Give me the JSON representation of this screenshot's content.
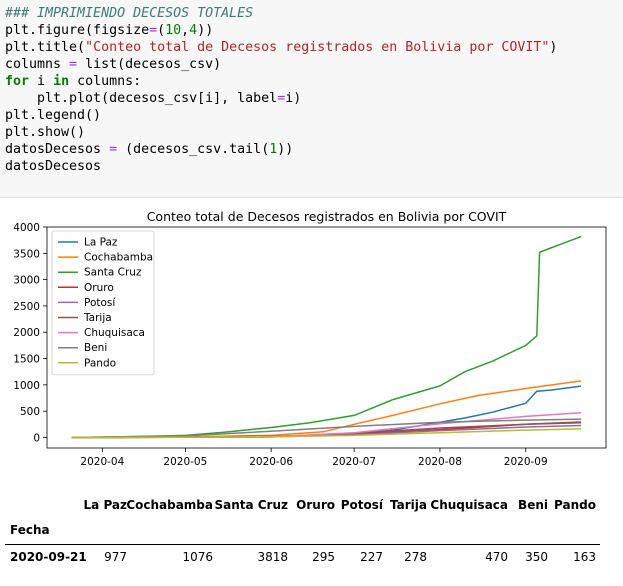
{
  "code_cell": {
    "lines": [
      {
        "parts": [
          {
            "t": "### IMPRIMIENDO DECESOS TOTALES",
            "c": "cm"
          }
        ]
      },
      {
        "parts": [
          {
            "t": "plt.figure(figsize",
            "c": ""
          },
          {
            "t": "=",
            "c": "op"
          },
          {
            "t": "(",
            "c": ""
          },
          {
            "t": "10",
            "c": "nu"
          },
          {
            "t": ",",
            "c": ""
          },
          {
            "t": "4",
            "c": "nu"
          },
          {
            "t": "))",
            "c": ""
          }
        ]
      },
      {
        "parts": [
          {
            "t": "plt.title(",
            "c": ""
          },
          {
            "t": "\"Conteo total de Decesos registrados en Bolivia por COVIT\"",
            "c": "st"
          },
          {
            "t": ")",
            "c": ""
          }
        ]
      },
      {
        "parts": [
          {
            "t": "columns ",
            "c": ""
          },
          {
            "t": "=",
            "c": "op"
          },
          {
            "t": " list(decesos_csv)",
            "c": ""
          }
        ]
      },
      {
        "parts": [
          {
            "t": "for",
            "c": "kw"
          },
          {
            "t": " i ",
            "c": ""
          },
          {
            "t": "in",
            "c": "kw"
          },
          {
            "t": " columns:",
            "c": ""
          }
        ]
      },
      {
        "parts": [
          {
            "t": "    plt.plot(decesos_csv[i], label",
            "c": ""
          },
          {
            "t": "=",
            "c": "op"
          },
          {
            "t": "i)",
            "c": ""
          }
        ]
      },
      {
        "parts": [
          {
            "t": "plt.legend()",
            "c": ""
          }
        ]
      },
      {
        "parts": [
          {
            "t": "plt.show()",
            "c": ""
          }
        ]
      },
      {
        "parts": [
          {
            "t": "datosDecesos ",
            "c": ""
          },
          {
            "t": "=",
            "c": "op"
          },
          {
            "t": " (decesos_csv.tail(",
            "c": ""
          },
          {
            "t": "1",
            "c": "nu"
          },
          {
            "t": "))",
            "c": ""
          }
        ]
      },
      {
        "parts": [
          {
            "t": "datosDecesos",
            "c": ""
          }
        ]
      }
    ]
  },
  "chart_data": {
    "type": "line",
    "title": "Conteo total de Decesos registrados en Bolivia por COVIT",
    "xlabel": "",
    "ylabel": "",
    "x_ticks": [
      "2020-04",
      "2020-05",
      "2020-06",
      "2020-07",
      "2020-08",
      "2020-09"
    ],
    "x_range": [
      "2020-03-21",
      "2020-09-21"
    ],
    "y_ticks": [
      0,
      500,
      1000,
      1500,
      2000,
      2500,
      3000,
      3500,
      4000
    ],
    "ylim": [
      -200,
      4000
    ],
    "legend_position": "top-left",
    "series": [
      {
        "name": "La Paz",
        "color": "#1f77b4",
        "points": [
          [
            "2020-03-21",
            0
          ],
          [
            "2020-05-01",
            5
          ],
          [
            "2020-06-01",
            15
          ],
          [
            "2020-07-01",
            70
          ],
          [
            "2020-07-15",
            140
          ],
          [
            "2020-08-01",
            290
          ],
          [
            "2020-08-10",
            370
          ],
          [
            "2020-08-20",
            480
          ],
          [
            "2020-09-01",
            650
          ],
          [
            "2020-09-05",
            880
          ],
          [
            "2020-09-10",
            900
          ],
          [
            "2020-09-21",
            977
          ]
        ]
      },
      {
        "name": "Cochabamba",
        "color": "#ff7f0e",
        "points": [
          [
            "2020-03-21",
            0
          ],
          [
            "2020-05-01",
            10
          ],
          [
            "2020-06-01",
            40
          ],
          [
            "2020-06-20",
            110
          ],
          [
            "2020-07-01",
            250
          ],
          [
            "2020-07-15",
            420
          ],
          [
            "2020-08-01",
            640
          ],
          [
            "2020-08-15",
            800
          ],
          [
            "2020-09-01",
            930
          ],
          [
            "2020-09-21",
            1076
          ]
        ]
      },
      {
        "name": "Santa Cruz",
        "color": "#2ca02c",
        "points": [
          [
            "2020-03-21",
            0
          ],
          [
            "2020-04-15",
            20
          ],
          [
            "2020-05-01",
            40
          ],
          [
            "2020-05-15",
            100
          ],
          [
            "2020-06-01",
            190
          ],
          [
            "2020-06-15",
            280
          ],
          [
            "2020-07-01",
            420
          ],
          [
            "2020-07-15",
            720
          ],
          [
            "2020-08-01",
            980
          ],
          [
            "2020-08-10",
            1250
          ],
          [
            "2020-08-20",
            1450
          ],
          [
            "2020-09-01",
            1750
          ],
          [
            "2020-09-05",
            1930
          ],
          [
            "2020-09-06",
            3520
          ],
          [
            "2020-09-10",
            3600
          ],
          [
            "2020-09-15",
            3700
          ],
          [
            "2020-09-21",
            3818
          ]
        ]
      },
      {
        "name": "Oruro",
        "color": "#d62728",
        "points": [
          [
            "2020-03-21",
            0
          ],
          [
            "2020-06-01",
            20
          ],
          [
            "2020-07-01",
            60
          ],
          [
            "2020-08-01",
            150
          ],
          [
            "2020-09-01",
            250
          ],
          [
            "2020-09-21",
            295
          ]
        ]
      },
      {
        "name": "Potosí",
        "color": "#9467bd",
        "points": [
          [
            "2020-03-21",
            0
          ],
          [
            "2020-06-01",
            10
          ],
          [
            "2020-07-01",
            50
          ],
          [
            "2020-08-01",
            130
          ],
          [
            "2020-09-01",
            200
          ],
          [
            "2020-09-21",
            227
          ]
        ]
      },
      {
        "name": "Tarija",
        "color": "#8c564b",
        "points": [
          [
            "2020-03-21",
            0
          ],
          [
            "2020-06-01",
            10
          ],
          [
            "2020-07-01",
            80
          ],
          [
            "2020-08-01",
            180
          ],
          [
            "2020-09-01",
            250
          ],
          [
            "2020-09-21",
            278
          ]
        ]
      },
      {
        "name": "Chuquisaca",
        "color": "#e377c2",
        "points": [
          [
            "2020-03-21",
            0
          ],
          [
            "2020-06-01",
            15
          ],
          [
            "2020-07-01",
            90
          ],
          [
            "2020-08-01",
            260
          ],
          [
            "2020-09-01",
            400
          ],
          [
            "2020-09-21",
            470
          ]
        ]
      },
      {
        "name": "Beni",
        "color": "#7f7f7f",
        "points": [
          [
            "2020-03-21",
            0
          ],
          [
            "2020-05-01",
            30
          ],
          [
            "2020-06-01",
            120
          ],
          [
            "2020-07-01",
            210
          ],
          [
            "2020-08-01",
            290
          ],
          [
            "2020-09-01",
            330
          ],
          [
            "2020-09-21",
            350
          ]
        ]
      },
      {
        "name": "Pando",
        "color": "#bcbd22",
        "points": [
          [
            "2020-03-21",
            0
          ],
          [
            "2020-06-01",
            10
          ],
          [
            "2020-07-01",
            40
          ],
          [
            "2020-08-01",
            90
          ],
          [
            "2020-09-01",
            140
          ],
          [
            "2020-09-21",
            163
          ]
        ]
      }
    ]
  },
  "table": {
    "columns": [
      "La Paz",
      "Cochabamba",
      "Santa Cruz",
      "Oruro",
      "Potosí",
      "Tarija",
      "Chuquisaca",
      "Beni",
      "Pando"
    ],
    "index_name": "Fecha",
    "rows": [
      {
        "index": "2020-09-21",
        "values": [
          "977",
          "1076",
          "3818",
          "295",
          "227",
          "278",
          "470",
          "350",
          "163"
        ]
      }
    ]
  }
}
